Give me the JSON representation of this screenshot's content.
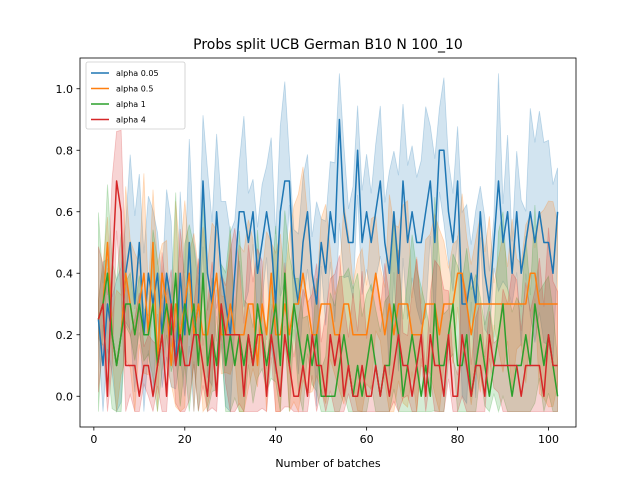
{
  "chart_data": {
    "type": "line",
    "title": "Probs split UCB German B10 N 100_10",
    "xlabel": "Number of batches",
    "ylabel": "",
    "xlim": [
      -3.05,
      106.05
    ],
    "ylim": [
      -0.1,
      1.1
    ],
    "xticks": [
      0,
      20,
      40,
      60,
      80,
      100
    ],
    "yticks": [
      0.0,
      0.2,
      0.4,
      0.6,
      0.8,
      1.0
    ],
    "xtick_labels": [
      "0",
      "20",
      "40",
      "60",
      "80",
      "100"
    ],
    "ytick_labels": [
      "0.0",
      "0.2",
      "0.4",
      "0.6",
      "0.8",
      "1.0"
    ],
    "grid": false,
    "legend_position": "upper-left",
    "x": [
      1,
      2,
      3,
      4,
      5,
      6,
      7,
      8,
      9,
      10,
      11,
      12,
      13,
      14,
      15,
      16,
      17,
      18,
      19,
      20,
      21,
      22,
      23,
      24,
      25,
      26,
      27,
      28,
      29,
      30,
      31,
      32,
      33,
      34,
      35,
      36,
      37,
      38,
      39,
      40,
      41,
      42,
      43,
      44,
      45,
      46,
      47,
      48,
      49,
      50,
      51,
      52,
      53,
      54,
      55,
      56,
      57,
      58,
      59,
      60,
      61,
      62,
      63,
      64,
      65,
      66,
      67,
      68,
      69,
      70,
      71,
      72,
      73,
      74,
      75,
      76,
      77,
      78,
      79,
      80,
      81,
      82,
      83,
      84,
      85,
      86,
      87,
      88,
      89,
      90,
      91,
      92,
      93,
      94,
      95,
      96,
      97,
      98,
      99,
      100,
      101,
      102
    ],
    "series": [
      {
        "name": "alpha 0.05",
        "color": "#1f77b4",
        "values": [
          0.25,
          0.1,
          0.3,
          0.2,
          0.1,
          0.2,
          0.4,
          0.5,
          0.3,
          0.5,
          0.2,
          0.4,
          0.3,
          0.4,
          0.2,
          0.4,
          0.3,
          0.1,
          0.4,
          0.2,
          0.5,
          0.2,
          0.3,
          0.7,
          0.4,
          0.3,
          0.6,
          0.4,
          0.3,
          0.2,
          0.4,
          0.6,
          0.6,
          0.5,
          0.6,
          0.4,
          0.5,
          0.6,
          0.5,
          0.3,
          0.6,
          0.7,
          0.7,
          0.4,
          0.3,
          0.5,
          0.6,
          0.4,
          0.3,
          0.5,
          0.4,
          0.6,
          0.5,
          0.9,
          0.6,
          0.5,
          0.5,
          0.8,
          0.5,
          0.6,
          0.5,
          0.6,
          0.7,
          0.5,
          0.4,
          0.6,
          0.4,
          0.7,
          0.5,
          0.6,
          0.5,
          0.5,
          0.6,
          0.7,
          0.5,
          0.8,
          0.8,
          0.6,
          0.5,
          0.7,
          0.3,
          0.3,
          0.4,
          0.3,
          0.6,
          0.4,
          0.3,
          0.5,
          0.7,
          0.5,
          0.6,
          0.4,
          0.6,
          0.4,
          0.5,
          0.6,
          0.5,
          0.6,
          0.5,
          0.5,
          0.4,
          0.6
        ]
      },
      {
        "name": "alpha 0.5",
        "color": "#ff7f0e",
        "values": [
          0.25,
          0.3,
          0.5,
          0.2,
          0.1,
          0.2,
          0.4,
          0.3,
          0.2,
          0.3,
          0.4,
          0.2,
          0.5,
          0.1,
          0.4,
          0.3,
          0.1,
          0.3,
          0.2,
          0.3,
          0.4,
          0.2,
          0.3,
          0.2,
          0.2,
          0.3,
          0.4,
          0.2,
          0.2,
          0.3,
          0.2,
          0.2,
          0.2,
          0.3,
          0.3,
          0.1,
          0.3,
          0.2,
          0.4,
          0.2,
          0.2,
          0.3,
          0.2,
          0.3,
          0.3,
          0.4,
          0.3,
          0.2,
          0.2,
          0.3,
          0.3,
          0.3,
          0.2,
          0.2,
          0.3,
          0.3,
          0.2,
          0.2,
          0.2,
          0.2,
          0.3,
          0.4,
          0.3,
          0.2,
          0.3,
          0.2,
          0.3,
          0.3,
          0.3,
          0.2,
          0.2,
          0.2,
          0.3,
          0.3,
          0.3,
          0.2,
          0.3,
          0.3,
          0.3,
          0.4,
          0.4,
          0.3,
          0.2,
          0.3,
          0.3,
          0.3,
          0.3,
          0.3,
          0.3,
          0.3,
          0.3,
          0.3,
          0.3,
          0.3,
          0.3,
          0.4,
          0.4,
          0.3,
          0.3,
          0.3,
          0.3,
          0.3
        ]
      },
      {
        "name": "alpha 1",
        "color": "#2ca02c",
        "values": [
          0.25,
          0.3,
          0.4,
          0.2,
          0.1,
          0.2,
          0.3,
          0.3,
          0.2,
          0.3,
          0.2,
          0.2,
          0.3,
          0.1,
          0.2,
          0.3,
          0.2,
          0.4,
          0.1,
          0.3,
          0.2,
          0.3,
          0.1,
          0.4,
          0.1,
          0.2,
          0.1,
          0.3,
          0.1,
          0.2,
          0.1,
          0.2,
          0.1,
          0.2,
          0.1,
          0.3,
          0.2,
          0.1,
          0.2,
          0.3,
          0.1,
          0.4,
          0.1,
          0.3,
          0.2,
          0.1,
          0.2,
          0.1,
          0.2,
          0.0,
          0.0,
          0.0,
          0.0,
          0.1,
          0.2,
          0.1,
          0.0,
          0.1,
          0.0,
          0.1,
          0.2,
          0.1,
          0.0,
          0.1,
          0.1,
          0.3,
          0.2,
          0.0,
          0.1,
          0.2,
          0.1,
          0.0,
          0.1,
          0.0,
          0.3,
          0.1,
          0.1,
          0.2,
          0.3,
          0.1,
          0.1,
          0.2,
          0.0,
          0.1,
          0.2,
          0.1,
          0.0,
          0.1,
          0.2,
          0.3,
          0.1,
          0.0,
          0.1,
          0.1,
          0.2,
          0.1,
          0.3,
          0.2,
          0.1,
          0.2,
          0.1,
          0.0
        ]
      },
      {
        "name": "alpha 4",
        "color": "#d62728",
        "values": [
          0.25,
          0.3,
          0.0,
          0.4,
          0.7,
          0.6,
          0.1,
          0.1,
          0.1,
          0.0,
          0.1,
          0.1,
          0.0,
          0.1,
          0.2,
          0.0,
          0.3,
          0.1,
          0.2,
          0.1,
          0.1,
          0.2,
          0.2,
          0.1,
          0.0,
          0.2,
          0.0,
          0.3,
          0.2,
          0.2,
          0.2,
          0.2,
          0.0,
          0.2,
          0.1,
          0.2,
          0.2,
          0.0,
          0.2,
          0.1,
          0.0,
          0.2,
          0.1,
          0.0,
          0.0,
          0.1,
          0.0,
          0.2,
          0.1,
          0.1,
          0.0,
          0.2,
          0.1,
          0.2,
          0.0,
          0.1,
          0.0,
          0.0,
          0.1,
          0.0,
          0.0,
          0.1,
          0.0,
          0.1,
          0.0,
          0.1,
          0.2,
          0.1,
          0.1,
          0.0,
          0.1,
          0.2,
          0.0,
          0.2,
          0.1,
          0.1,
          0.0,
          0.2,
          0.0,
          0.0,
          0.2,
          0.1,
          0.0,
          0.1,
          0.1,
          0.0,
          0.2,
          0.1,
          0.1,
          0.1,
          0.1,
          0.1,
          0.1,
          0.0,
          0.1,
          0.1,
          0.1,
          0.1,
          0.0,
          0.2,
          0.1,
          0.1
        ]
      }
    ]
  }
}
